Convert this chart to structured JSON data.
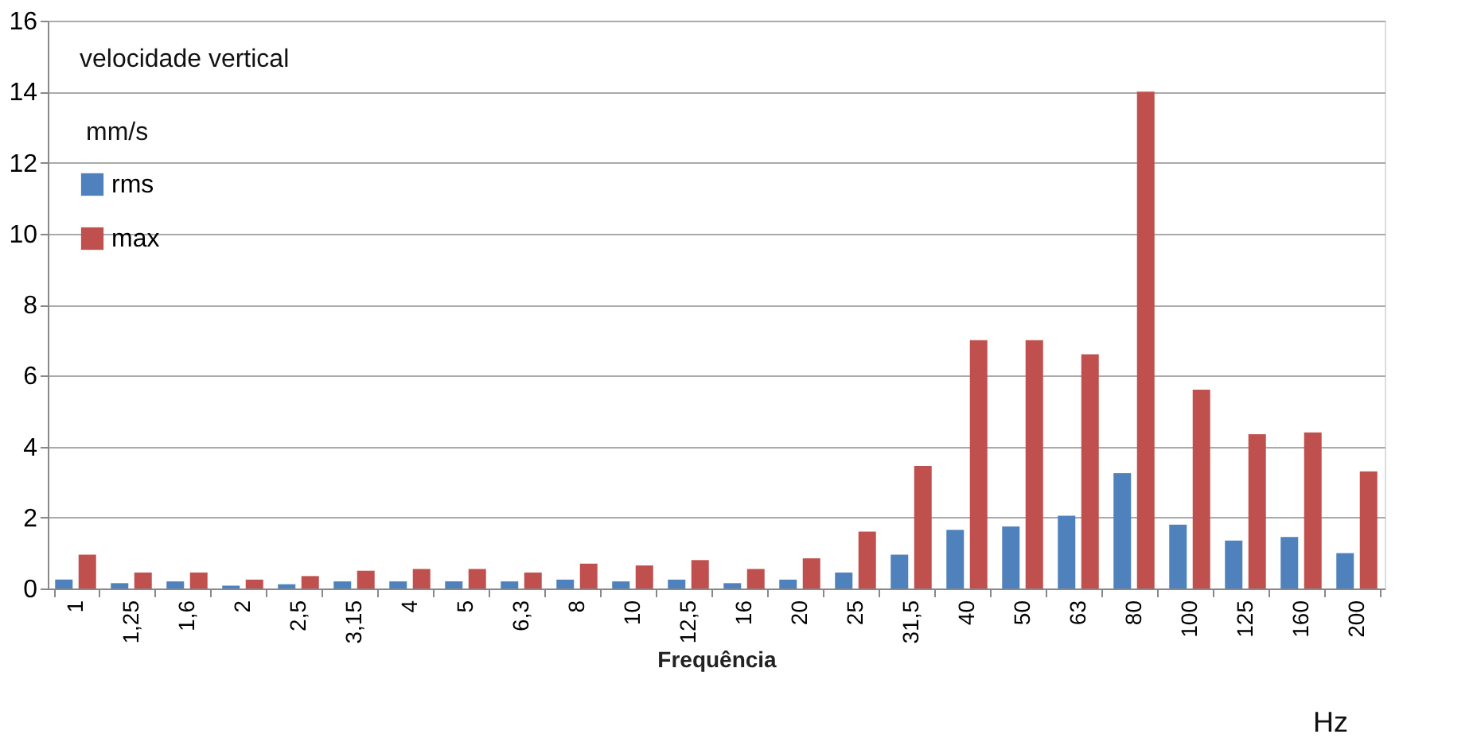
{
  "chart_data": {
    "type": "bar",
    "xlabel": "Frequência",
    "annotations": [
      "velocidade vertical",
      "mm/s",
      "Hz"
    ],
    "categories": [
      "1",
      "1,25",
      "1,6",
      "2",
      "2,5",
      "3,15",
      "4",
      "5",
      "6,3",
      "8",
      "10",
      "12,5",
      "16",
      "20",
      "25",
      "31,5",
      "40",
      "50",
      "63",
      "80",
      "100",
      "125",
      "160",
      "200"
    ],
    "series": [
      {
        "name": "rms",
        "color": "#4f81bd",
        "values": [
          0.25,
          0.15,
          0.2,
          0.08,
          0.12,
          0.2,
          0.2,
          0.2,
          0.2,
          0.25,
          0.2,
          0.25,
          0.15,
          0.25,
          0.45,
          0.95,
          1.65,
          1.75,
          2.05,
          3.25,
          1.8,
          1.35,
          1.45,
          1.0
        ]
      },
      {
        "name": "max",
        "color": "#c0504d",
        "values": [
          0.95,
          0.45,
          0.45,
          0.25,
          0.35,
          0.5,
          0.55,
          0.55,
          0.45,
          0.7,
          0.65,
          0.8,
          0.55,
          0.85,
          1.6,
          3.45,
          7.0,
          7.0,
          6.6,
          14.0,
          5.6,
          4.35,
          4.4,
          3.3
        ]
      }
    ],
    "ylim": [
      0,
      16
    ],
    "yticks": [
      0,
      2,
      4,
      6,
      8,
      10,
      12,
      14,
      16
    ],
    "grid": "y",
    "legend": "top left"
  }
}
